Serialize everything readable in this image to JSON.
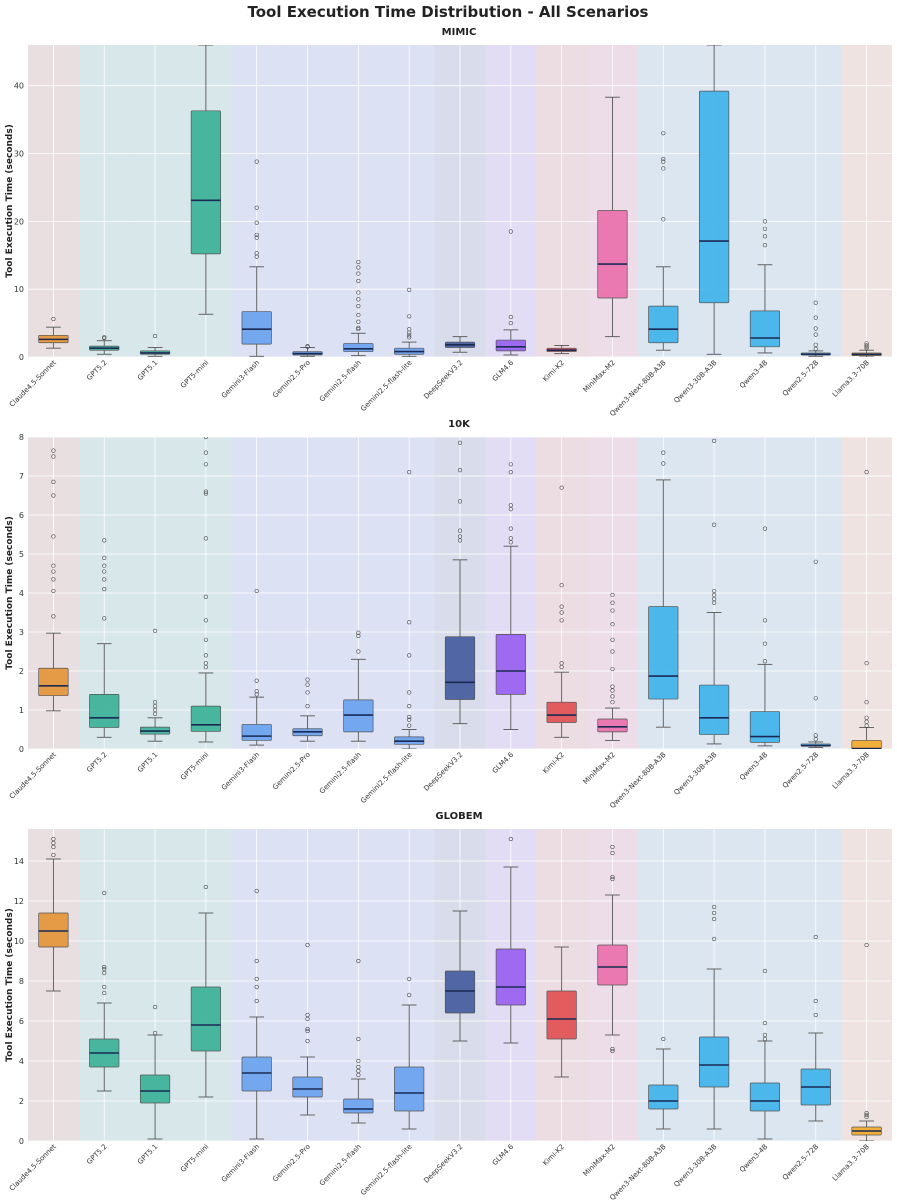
{
  "figure_title": "Tool Execution Time Distribution - All Scenarios",
  "chart_data": [
    {
      "type": "box",
      "title": "MIMIC",
      "ylabel": "Tool Execution Time (seconds)",
      "ylim": [
        0,
        46
      ],
      "yticks": [
        0,
        10,
        20,
        30,
        40
      ],
      "categories": [
        "Claude4.5-Sonnet",
        "GPT5.2",
        "GPT5.1",
        "GPT5-mini",
        "Gemini3-Flash",
        "Gemini2.5-Pro",
        "Gemini2.5-flash",
        "Gemini2.5-flash-lite",
        "DeepSeekV3.2",
        "GLM4.6",
        "Kimi-K2",
        "MiniMax-M2",
        "Qwen3-Next-80B-A3B",
        "Qwen3-30B-A3B",
        "Qwen3-4B",
        "Qwen2.5-72B",
        "Llama3.3-70B"
      ],
      "boxes": [
        {
          "min": 1.3,
          "q1": 2.1,
          "median": 2.6,
          "q3": 3.2,
          "max": 4.4,
          "outliers": [
            5.6
          ]
        },
        {
          "min": 0.4,
          "q1": 1.0,
          "median": 1.3,
          "q3": 1.6,
          "max": 2.4,
          "outliers": [
            2.8,
            2.9
          ]
        },
        {
          "min": 0.1,
          "q1": 0.4,
          "median": 0.6,
          "q3": 0.9,
          "max": 1.4,
          "outliers": [
            3.1
          ]
        },
        {
          "min": 6.3,
          "q1": 15.2,
          "median": 23.1,
          "q3": 36.3,
          "max": 46,
          "outliers": []
        },
        {
          "min": 0.1,
          "q1": 1.9,
          "median": 4.1,
          "q3": 6.7,
          "max": 13.3,
          "outliers": [
            14.8,
            15.3,
            17.6,
            18.0,
            19.8,
            22.0,
            28.8
          ]
        },
        {
          "min": 0.1,
          "q1": 0.3,
          "median": 0.5,
          "q3": 0.8,
          "max": 1.4,
          "outliers": [
            1.5,
            1.6
          ]
        },
        {
          "min": 0.2,
          "q1": 0.8,
          "median": 1.2,
          "q3": 2.0,
          "max": 3.5,
          "outliers": [
            4.1,
            4.3,
            5.2,
            6.2,
            7.5,
            8.5,
            9.5,
            11.2,
            12.3,
            13.2,
            14.0
          ]
        },
        {
          "min": 0.1,
          "q1": 0.4,
          "median": 0.8,
          "q3": 1.3,
          "max": 2.2,
          "outliers": [
            2.9,
            3.2,
            3.6,
            4.1,
            6.0,
            9.9
          ]
        },
        {
          "min": 0.7,
          "q1": 1.4,
          "median": 1.8,
          "q3": 2.2,
          "max": 3.0,
          "outliers": []
        },
        {
          "min": 0.3,
          "q1": 0.9,
          "median": 1.5,
          "q3": 2.5,
          "max": 4.0,
          "outliers": [
            5.0,
            5.9,
            18.5
          ]
        },
        {
          "min": 0.5,
          "q1": 0.8,
          "median": 1.0,
          "q3": 1.3,
          "max": 1.7,
          "outliers": []
        },
        {
          "min": 3.0,
          "q1": 8.7,
          "median": 13.7,
          "q3": 21.6,
          "max": 38.3,
          "outliers": []
        },
        {
          "min": 1.0,
          "q1": 2.1,
          "median": 4.1,
          "q3": 7.5,
          "max": 13.3,
          "outliers": [
            20.3,
            27.8,
            28.8,
            29.2,
            33.0
          ]
        },
        {
          "min": 0.4,
          "q1": 8.0,
          "median": 17.1,
          "q3": 39.2,
          "max": 46,
          "outliers": []
        },
        {
          "min": 0.6,
          "q1": 1.5,
          "median": 2.8,
          "q3": 6.8,
          "max": 13.6,
          "outliers": [
            16.5,
            17.8,
            18.9,
            20.0
          ]
        },
        {
          "min": 0.1,
          "q1": 0.3,
          "median": 0.4,
          "q3": 0.6,
          "max": 0.9,
          "outliers": [
            1.2,
            1.8,
            3.3,
            4.2,
            5.8,
            8.0
          ]
        },
        {
          "min": 0.0,
          "q1": 0.2,
          "median": 0.4,
          "q3": 0.6,
          "max": 1.0,
          "outliers": [
            1.3,
            1.5,
            1.7,
            2.0
          ]
        }
      ]
    },
    {
      "type": "box",
      "title": "10K",
      "ylabel": "Tool Execution Time (seconds)",
      "ylim": [
        0,
        8
      ],
      "yticks": [
        0,
        1,
        2,
        3,
        4,
        5,
        6,
        7,
        8
      ],
      "categories": [
        "Claude4.5-Sonnet",
        "GPT5.2",
        "GPT5.1",
        "GPT5-mini",
        "Gemini3-Flash",
        "Gemini2.5-Pro",
        "Gemini2.5-flash",
        "Gemini2.5-flash-lite",
        "DeepSeekV3.2",
        "GLM4.6",
        "Kimi-K2",
        "MiniMax-M2",
        "Qwen3-Next-80B-A3B",
        "Qwen3-30B-A3B",
        "Qwen3-4B",
        "Qwen2.5-72B",
        "Llama3.3-70B"
      ],
      "boxes": [
        {
          "min": 0.98,
          "q1": 1.37,
          "median": 1.62,
          "q3": 2.07,
          "max": 2.97,
          "outliers": [
            3.4,
            4.05,
            4.35,
            4.55,
            4.7,
            5.45,
            6.5,
            6.85,
            7.5,
            7.65
          ]
        },
        {
          "min": 0.3,
          "q1": 0.55,
          "median": 0.8,
          "q3": 1.4,
          "max": 2.7,
          "outliers": [
            3.35,
            4.1,
            4.35,
            4.55,
            4.7,
            4.9,
            5.35
          ]
        },
        {
          "min": 0.2,
          "q1": 0.38,
          "median": 0.46,
          "q3": 0.56,
          "max": 0.8,
          "outliers": [
            0.9,
            1.0,
            1.1,
            1.2,
            3.03
          ]
        },
        {
          "min": 0.18,
          "q1": 0.45,
          "median": 0.62,
          "q3": 1.1,
          "max": 1.95,
          "outliers": [
            2.1,
            2.2,
            2.4,
            2.8,
            3.3,
            3.9,
            5.4,
            6.55,
            6.6,
            7.3,
            7.6,
            8.0
          ]
        },
        {
          "min": 0.1,
          "q1": 0.22,
          "median": 0.33,
          "q3": 0.63,
          "max": 1.33,
          "outliers": [
            1.4,
            1.48,
            1.75,
            4.05
          ]
        },
        {
          "min": 0.2,
          "q1": 0.34,
          "median": 0.44,
          "q3": 0.52,
          "max": 0.85,
          "outliers": [
            1.1,
            1.45,
            1.65,
            1.78
          ]
        },
        {
          "min": 0.2,
          "q1": 0.44,
          "median": 0.87,
          "q3": 1.26,
          "max": 2.3,
          "outliers": [
            2.5,
            2.9,
            2.98
          ]
        },
        {
          "min": 0.0,
          "q1": 0.12,
          "median": 0.2,
          "q3": 0.31,
          "max": 0.5,
          "outliers": [
            0.6,
            0.75,
            0.82,
            1.1,
            1.45,
            2.4,
            3.25,
            7.1
          ]
        },
        {
          "min": 0.65,
          "q1": 1.27,
          "median": 1.71,
          "q3": 2.88,
          "max": 4.85,
          "outliers": [
            5.35,
            5.45,
            5.6,
            6.35,
            7.15,
            7.85
          ]
        },
        {
          "min": 0.5,
          "q1": 1.4,
          "median": 2.0,
          "q3": 2.94,
          "max": 5.2,
          "outliers": [
            5.3,
            5.4,
            5.65,
            6.15,
            6.25,
            7.1,
            7.3
          ]
        },
        {
          "min": 0.3,
          "q1": 0.68,
          "median": 0.87,
          "q3": 1.2,
          "max": 1.97,
          "outliers": [
            2.1,
            2.2,
            3.3,
            3.5,
            3.65,
            4.2,
            6.7
          ]
        },
        {
          "min": 0.22,
          "q1": 0.44,
          "median": 0.57,
          "q3": 0.77,
          "max": 1.05,
          "outliers": [
            1.2,
            1.35,
            1.5,
            1.6,
            2.05,
            2.5,
            2.8,
            3.2,
            3.55,
            3.75,
            3.95
          ]
        },
        {
          "min": 0.56,
          "q1": 1.28,
          "median": 1.87,
          "q3": 3.65,
          "max": 6.9,
          "outliers": [
            7.32,
            7.6
          ]
        },
        {
          "min": 0.13,
          "q1": 0.37,
          "median": 0.8,
          "q3": 1.64,
          "max": 3.5,
          "outliers": [
            3.75,
            3.85,
            3.95,
            4.05,
            5.75,
            7.9
          ]
        },
        {
          "min": 0.08,
          "q1": 0.17,
          "median": 0.32,
          "q3": 0.96,
          "max": 2.17,
          "outliers": [
            2.25,
            2.7,
            3.3,
            5.65
          ]
        },
        {
          "min": 0.04,
          "q1": 0.07,
          "median": 0.09,
          "q3": 0.13,
          "max": 0.18,
          "outliers": [
            0.25,
            0.35,
            1.3,
            4.8
          ]
        },
        {
          "min": 0.0,
          "q1": 0.0,
          "median": 0.01,
          "q3": 0.22,
          "max": 0.55,
          "outliers": [
            0.6,
            0.7,
            0.8,
            1.2,
            2.2,
            7.1
          ]
        }
      ]
    },
    {
      "type": "box",
      "title": "GLOBEM",
      "ylabel": "Tool Execution Time (seconds)",
      "ylim": [
        0,
        15.6
      ],
      "yticks": [
        0,
        2,
        4,
        6,
        8,
        10,
        12,
        14
      ],
      "categories": [
        "Claude4.5-Sonnet",
        "GPT5.2",
        "GPT5.1",
        "GPT5-mini",
        "Gemini3-Flash",
        "Gemini2.5-Pro",
        "Gemini2.5-flash",
        "Gemini2.5-flash-lite",
        "DeepSeekV3.2",
        "GLM4.6",
        "Kimi-K2",
        "MiniMax-M2",
        "Qwen3-Next-80B-A3B",
        "Qwen3-30B-A3B",
        "Qwen3-4B",
        "Qwen2.5-72B",
        "Llama3.3-70B"
      ],
      "boxes": [
        {
          "min": 7.5,
          "q1": 9.7,
          "median": 10.5,
          "q3": 11.4,
          "max": 14.1,
          "outliers": [
            14.3,
            14.7,
            14.9,
            15.1
          ]
        },
        {
          "min": 2.5,
          "q1": 3.7,
          "median": 4.4,
          "q3": 5.1,
          "max": 6.9,
          "outliers": [
            7.4,
            7.7,
            8.4,
            8.6,
            8.7,
            12.4
          ]
        },
        {
          "min": 0.1,
          "q1": 1.9,
          "median": 2.5,
          "q3": 3.3,
          "max": 5.3,
          "outliers": [
            5.4,
            6.7
          ]
        },
        {
          "min": 2.2,
          "q1": 4.5,
          "median": 5.8,
          "q3": 7.7,
          "max": 11.4,
          "outliers": [
            12.7
          ]
        },
        {
          "min": 0.1,
          "q1": 2.5,
          "median": 3.4,
          "q3": 4.2,
          "max": 6.2,
          "outliers": [
            7.0,
            7.7,
            8.1,
            9.0,
            12.5
          ]
        },
        {
          "min": 1.3,
          "q1": 2.2,
          "median": 2.6,
          "q3": 3.2,
          "max": 4.2,
          "outliers": [
            5.0,
            5.5,
            5.6,
            6.1,
            6.3,
            9.8
          ]
        },
        {
          "min": 0.9,
          "q1": 1.4,
          "median": 1.6,
          "q3": 2.1,
          "max": 3.1,
          "outliers": [
            3.3,
            3.5,
            3.7,
            4.0,
            5.1,
            9.0
          ]
        },
        {
          "min": 0.6,
          "q1": 1.5,
          "median": 2.4,
          "q3": 3.7,
          "max": 6.8,
          "outliers": [
            7.3,
            8.1
          ]
        },
        {
          "min": 5.0,
          "q1": 6.4,
          "median": 7.5,
          "q3": 8.5,
          "max": 11.5,
          "outliers": []
        },
        {
          "min": 4.9,
          "q1": 6.8,
          "median": 7.7,
          "q3": 9.6,
          "max": 13.7,
          "outliers": [
            15.1
          ]
        },
        {
          "min": 3.2,
          "q1": 5.1,
          "median": 6.1,
          "q3": 7.5,
          "max": 9.7,
          "outliers": []
        },
        {
          "min": 5.3,
          "q1": 7.8,
          "median": 8.7,
          "q3": 9.8,
          "max": 12.3,
          "outliers": [
            4.5,
            4.6,
            13.1,
            13.2,
            14.4,
            14.7
          ]
        },
        {
          "min": 0.6,
          "q1": 1.6,
          "median": 2.0,
          "q3": 2.8,
          "max": 4.6,
          "outliers": [
            5.1
          ]
        },
        {
          "min": 0.6,
          "q1": 2.7,
          "median": 3.8,
          "q3": 5.2,
          "max": 8.6,
          "outliers": [
            10.1,
            11.1,
            11.4,
            11.7
          ]
        },
        {
          "min": 0.1,
          "q1": 1.5,
          "median": 2.0,
          "q3": 2.9,
          "max": 5.0,
          "outliers": [
            5.1,
            5.3,
            5.9,
            8.5
          ]
        },
        {
          "min": 1.0,
          "q1": 1.8,
          "median": 2.7,
          "q3": 3.6,
          "max": 5.4,
          "outliers": [
            6.3,
            7.0,
            10.2
          ]
        },
        {
          "min": 0.0,
          "q1": 0.3,
          "median": 0.5,
          "q3": 0.7,
          "max": 1.0,
          "outliers": [
            1.2,
            1.3,
            1.4,
            9.8
          ]
        }
      ]
    }
  ],
  "colors": {
    "box_fill": [
      "#e5973c",
      "#40b39a",
      "#40b39a",
      "#40b39a",
      "#6da3ee",
      "#6da3ee",
      "#6da3ee",
      "#6da3ee",
      "#4a5fa0",
      "#9a63ee",
      "#e25356",
      "#ea73ae",
      "#45b4ea",
      "#45b4ea",
      "#45b4ea",
      "#45b4ea",
      "#f1ab32"
    ],
    "median_line": "#1a2a55",
    "band_fill": [
      "#e9dfe1",
      "#d7e7ea",
      "#d7e7ea",
      "#d7e7ea",
      "#dce1f3",
      "#dce1f3",
      "#dce1f3",
      "#dce1f3",
      "#d9ddeb",
      "#e2ddf4",
      "#ecdde3",
      "#ecdde9",
      "#dbe6f1",
      "#dbe6f1",
      "#dbe6f1",
      "#dbe6f1",
      "#eee3e1"
    ],
    "grid": "#ffffff",
    "whisker": "#555555"
  }
}
